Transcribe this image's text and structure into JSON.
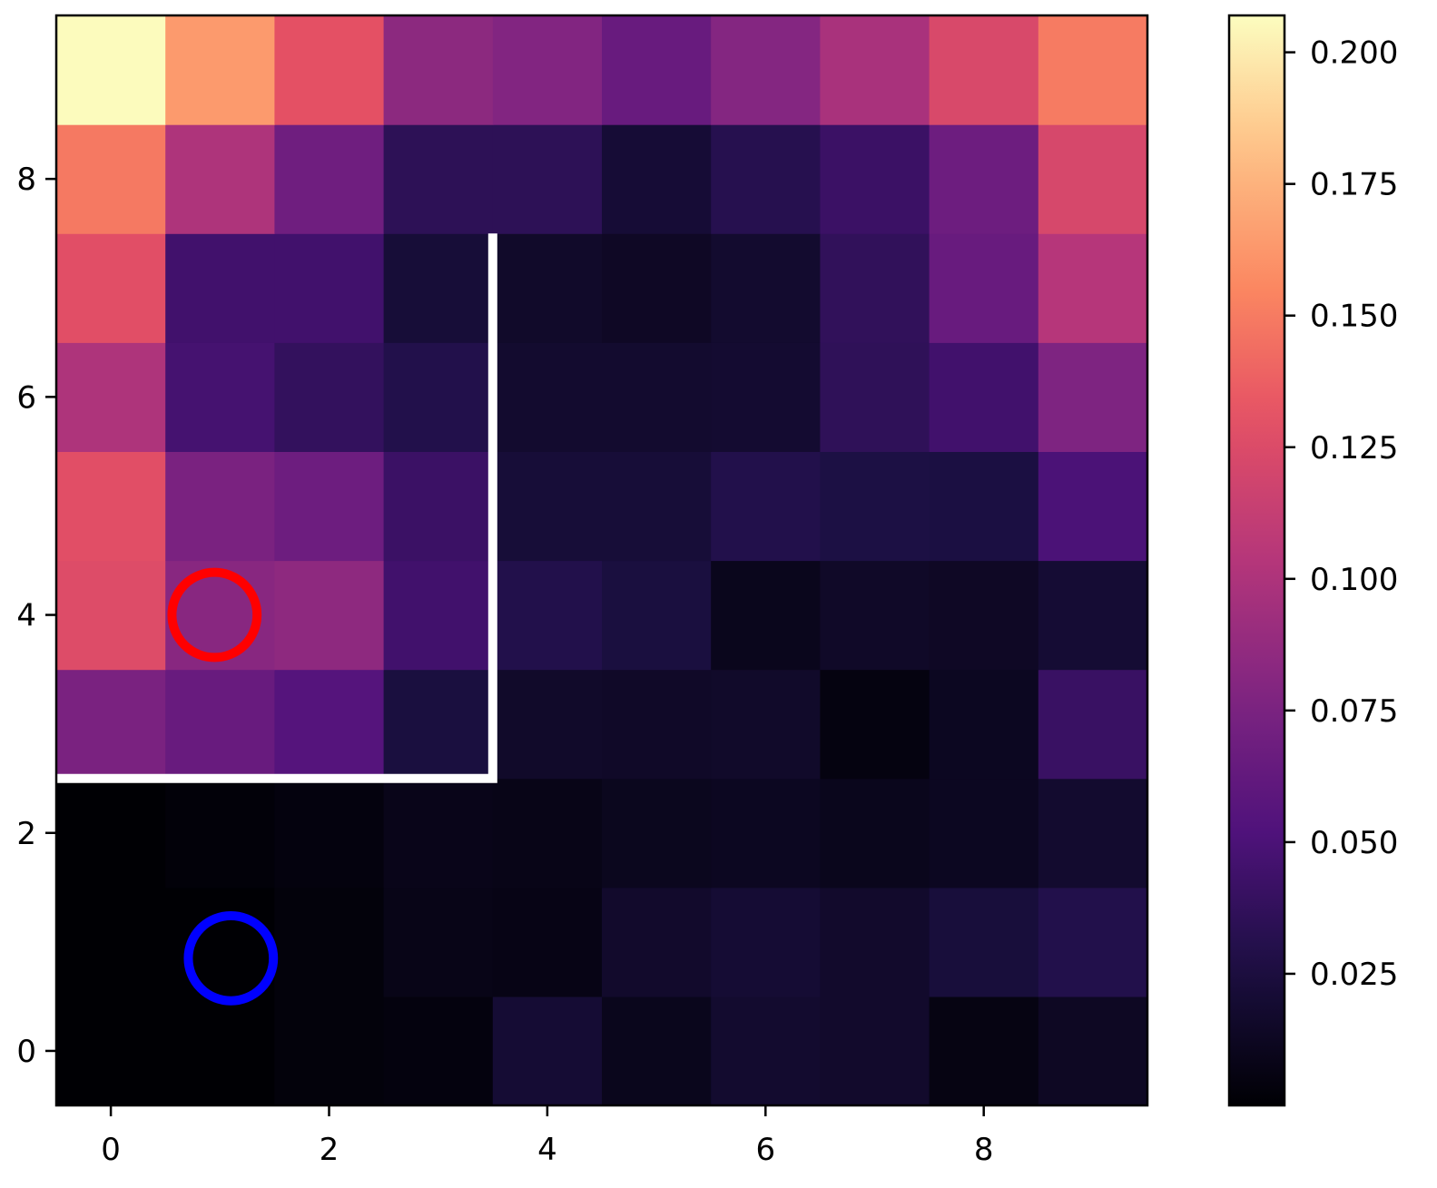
{
  "chart_data": {
    "type": "heatmap",
    "title": "",
    "xlabel": "",
    "ylabel": "",
    "x": [
      0,
      1,
      2,
      3,
      4,
      5,
      6,
      7,
      8,
      9
    ],
    "y": [
      0,
      1,
      2,
      3,
      4,
      5,
      6,
      7,
      8,
      9
    ],
    "xlim": [
      -0.5,
      9.5
    ],
    "ylim": [
      -0.5,
      9.5
    ],
    "x_ticks": [
      "0",
      "2",
      "4",
      "6",
      "8"
    ],
    "y_ticks": [
      "0",
      "2",
      "4",
      "6",
      "8"
    ],
    "grid": false,
    "colormap": "magma",
    "colorbar": {
      "min": 0.0,
      "max": 0.207,
      "ticks": [
        "0.025",
        "0.050",
        "0.075",
        "0.100",
        "0.125",
        "0.150",
        "0.175",
        "0.200"
      ]
    },
    "values": [
      [
        0.0,
        0.0,
        0.003,
        0.004,
        0.02,
        0.01,
        0.018,
        0.017,
        0.006,
        0.013
      ],
      [
        0.0,
        0.0,
        0.003,
        0.008,
        0.007,
        0.017,
        0.02,
        0.017,
        0.023,
        0.03
      ],
      [
        0.0,
        0.002,
        0.004,
        0.009,
        0.008,
        0.011,
        0.012,
        0.01,
        0.012,
        0.018
      ],
      [
        0.075,
        0.065,
        0.055,
        0.025,
        0.016,
        0.015,
        0.016,
        0.005,
        0.012,
        0.041
      ],
      [
        0.126,
        0.082,
        0.085,
        0.045,
        0.03,
        0.025,
        0.01,
        0.015,
        0.014,
        0.02
      ],
      [
        0.128,
        0.075,
        0.068,
        0.042,
        0.022,
        0.022,
        0.03,
        0.027,
        0.026,
        0.05
      ],
      [
        0.1,
        0.047,
        0.038,
        0.03,
        0.018,
        0.018,
        0.019,
        0.036,
        0.045,
        0.077
      ],
      [
        0.128,
        0.045,
        0.045,
        0.022,
        0.016,
        0.014,
        0.018,
        0.037,
        0.065,
        0.104
      ],
      [
        0.149,
        0.1,
        0.069,
        0.035,
        0.035,
        0.021,
        0.032,
        0.042,
        0.068,
        0.122
      ],
      [
        0.206,
        0.164,
        0.13,
        0.084,
        0.079,
        0.065,
        0.08,
        0.098,
        0.123,
        0.15
      ]
    ],
    "wall": [
      [
        -0.5,
        2.5
      ],
      [
        3.5,
        2.5
      ],
      [
        3.5,
        7.5
      ]
    ],
    "markers": [
      {
        "color": "#ff0000",
        "x": 0.95,
        "y": 4.0
      },
      {
        "color": "#0000ff",
        "x": 1.1,
        "y": 0.85
      }
    ],
    "wall_color": "#ffffff"
  }
}
